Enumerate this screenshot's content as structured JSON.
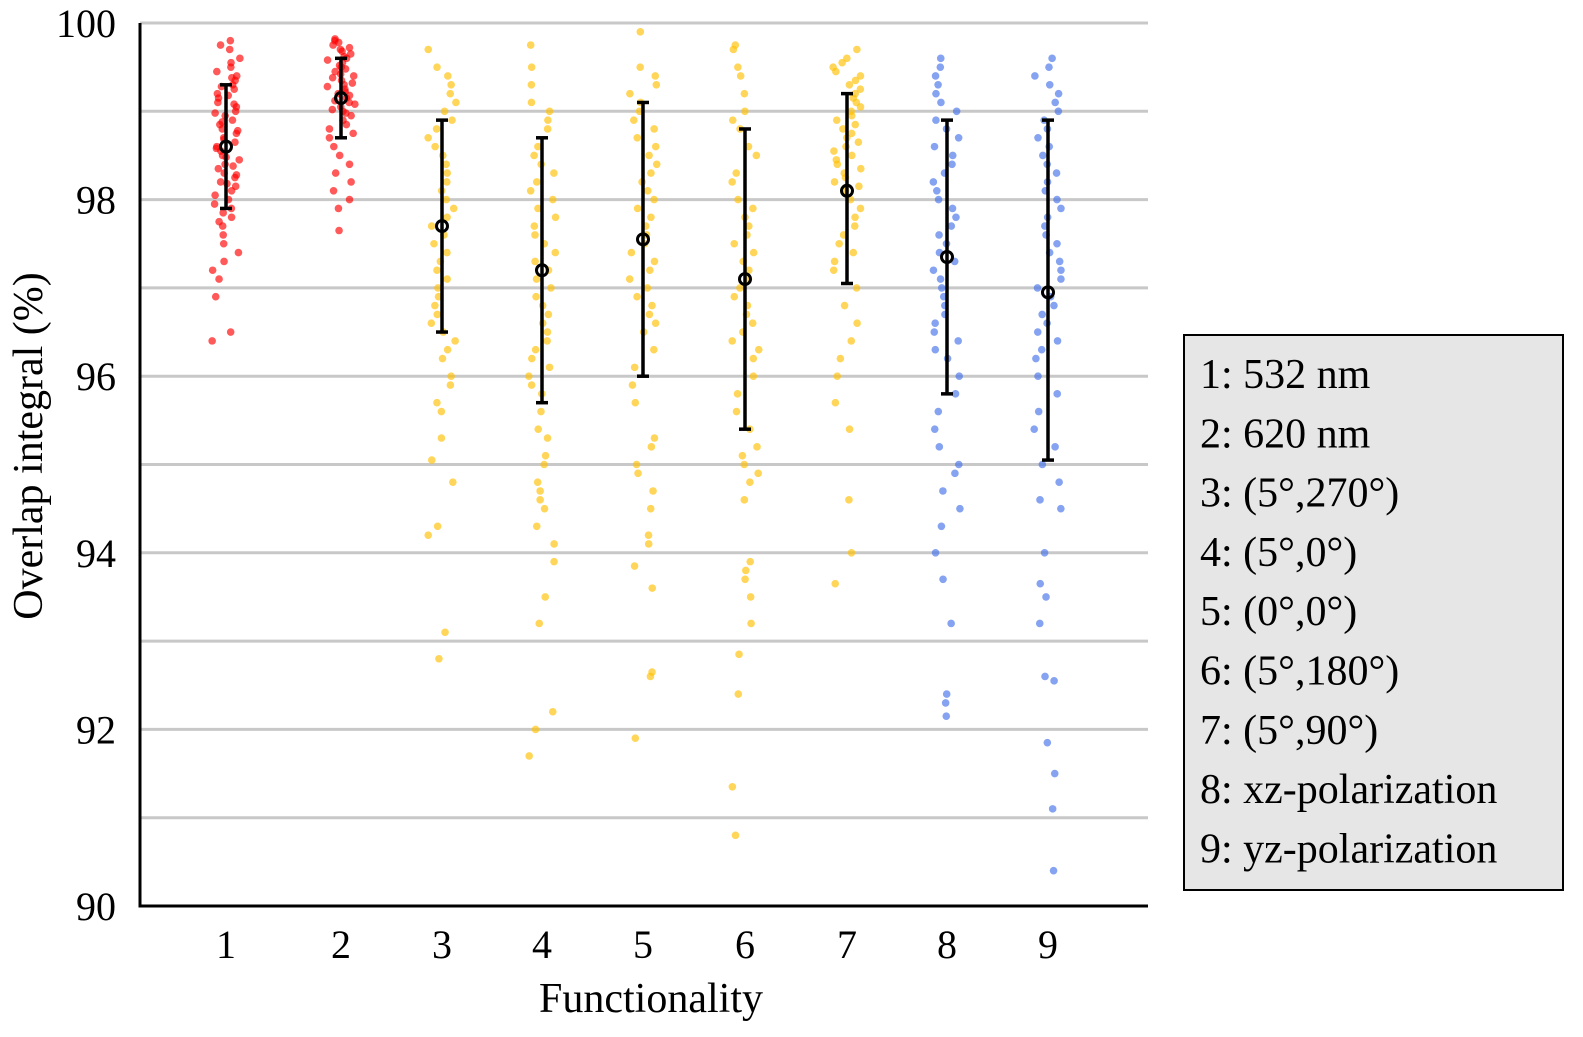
{
  "chart_data": {
    "type": "scatter",
    "subtype": "jittered strip plot with mean and standard-deviation error bars",
    "title": "",
    "xlabel": "Functionality",
    "ylabel": "Overlap integral (%)",
    "ylim": [
      90,
      100
    ],
    "yticks": [
      90,
      92,
      94,
      96,
      98,
      100
    ],
    "gridlines": [
      91,
      92,
      93,
      94,
      95,
      96,
      97,
      98,
      99,
      100
    ],
    "grid": true,
    "categories": [
      "1",
      "2",
      "3",
      "4",
      "5",
      "6",
      "7",
      "8",
      "9"
    ],
    "colors": {
      "group1": "#ff0000",
      "group2": "#ffc000",
      "group3": "#4472e8",
      "error_bar": "#000000",
      "grid": "#c8c8c8"
    },
    "series": [
      {
        "name": "1: 532 nm",
        "category": "1",
        "color": "#ff0000",
        "mean": 98.6,
        "err_low": 97.9,
        "err_high": 99.3,
        "points": [
          99.8,
          99.75,
          99.7,
          99.6,
          99.55,
          99.5,
          99.45,
          99.4,
          99.38,
          99.35,
          99.3,
          99.28,
          99.25,
          99.2,
          99.18,
          99.15,
          99.1,
          99.08,
          99.05,
          99.0,
          98.98,
          98.95,
          98.9,
          98.88,
          98.85,
          98.8,
          98.78,
          98.75,
          98.7,
          98.68,
          98.65,
          98.6,
          98.58,
          98.55,
          98.5,
          98.48,
          98.45,
          98.4,
          98.38,
          98.35,
          98.3,
          98.28,
          98.25,
          98.2,
          98.18,
          98.15,
          98.1,
          98.05,
          98.0,
          97.95,
          97.9,
          97.85,
          97.8,
          97.75,
          97.7,
          97.6,
          97.5,
          97.4,
          97.3,
          97.2,
          97.1,
          96.9,
          96.5,
          96.4
        ]
      },
      {
        "name": "2: 620 nm",
        "category": "2",
        "color": "#ff0000",
        "mean": 99.15,
        "err_low": 98.7,
        "err_high": 99.6,
        "points": [
          99.82,
          99.8,
          99.78,
          99.75,
          99.72,
          99.7,
          99.68,
          99.65,
          99.62,
          99.6,
          99.58,
          99.55,
          99.52,
          99.5,
          99.48,
          99.45,
          99.42,
          99.4,
          99.38,
          99.35,
          99.32,
          99.3,
          99.28,
          99.25,
          99.22,
          99.2,
          99.18,
          99.15,
          99.12,
          99.1,
          99.08,
          99.05,
          99.02,
          99.0,
          98.98,
          98.95,
          98.9,
          98.85,
          98.8,
          98.75,
          98.7,
          98.6,
          98.5,
          98.4,
          98.3,
          98.2,
          98.1,
          98.0,
          97.9,
          97.65
        ]
      },
      {
        "name": "3: (5°,270°)",
        "category": "3",
        "color": "#ffc000",
        "mean": 97.7,
        "err_low": 96.5,
        "err_high": 98.9,
        "points": [
          99.7,
          99.5,
          99.4,
          99.3,
          99.2,
          99.1,
          99.0,
          98.9,
          98.8,
          98.7,
          98.6,
          98.5,
          98.4,
          98.3,
          98.2,
          98.1,
          98.0,
          97.9,
          97.8,
          97.7,
          97.6,
          97.5,
          97.4,
          97.3,
          97.2,
          97.1,
          97.0,
          96.9,
          96.8,
          96.7,
          96.6,
          96.5,
          96.4,
          96.3,
          96.2,
          96.0,
          95.9,
          95.7,
          95.6,
          95.3,
          95.05,
          94.8,
          94.3,
          94.2,
          93.1,
          92.8
        ]
      },
      {
        "name": "4: (5°,0°)",
        "category": "4",
        "color": "#ffc000",
        "mean": 97.2,
        "err_low": 95.7,
        "err_high": 98.7,
        "points": [
          99.75,
          99.5,
          99.3,
          99.1,
          99.0,
          98.9,
          98.8,
          98.6,
          98.5,
          98.4,
          98.3,
          98.2,
          98.1,
          98.0,
          97.9,
          97.8,
          97.7,
          97.6,
          97.5,
          97.4,
          97.3,
          97.2,
          97.1,
          97.0,
          96.9,
          96.8,
          96.7,
          96.6,
          96.5,
          96.4,
          96.3,
          96.2,
          96.1,
          96.0,
          95.9,
          95.8,
          95.6,
          95.4,
          95.3,
          95.1,
          95.0,
          94.8,
          94.7,
          94.6,
          94.5,
          94.3,
          94.1,
          93.9,
          93.5,
          93.2,
          92.2,
          92.0,
          91.7
        ]
      },
      {
        "name": "5: (0°,0°)",
        "category": "5",
        "color": "#ffc000",
        "mean": 97.55,
        "err_low": 96.0,
        "err_high": 99.1,
        "points": [
          99.9,
          99.5,
          99.4,
          99.3,
          99.2,
          99.1,
          99.0,
          98.9,
          98.8,
          98.7,
          98.6,
          98.5,
          98.4,
          98.3,
          98.2,
          98.1,
          98.0,
          97.9,
          97.8,
          97.7,
          97.6,
          97.5,
          97.4,
          97.3,
          97.2,
          97.1,
          97.0,
          96.9,
          96.8,
          96.7,
          96.6,
          96.5,
          96.3,
          96.1,
          95.9,
          95.7,
          95.3,
          95.2,
          95.0,
          94.9,
          94.7,
          94.5,
          94.2,
          94.1,
          93.85,
          93.6,
          92.65,
          92.6,
          91.9
        ]
      },
      {
        "name": "6: (5°,180°)",
        "category": "6",
        "color": "#ffc000",
        "mean": 97.1,
        "err_low": 95.4,
        "err_high": 98.8,
        "points": [
          99.75,
          99.7,
          99.5,
          99.4,
          99.2,
          99.0,
          98.9,
          98.8,
          98.6,
          98.5,
          98.3,
          98.2,
          98.0,
          97.9,
          97.8,
          97.7,
          97.6,
          97.5,
          97.4,
          97.3,
          97.2,
          97.1,
          97.0,
          96.9,
          96.8,
          96.7,
          96.6,
          96.5,
          96.4,
          96.3,
          96.2,
          96.0,
          95.8,
          95.6,
          95.4,
          95.2,
          95.1,
          95.0,
          94.9,
          94.8,
          94.6,
          93.9,
          93.8,
          93.7,
          93.5,
          93.2,
          92.85,
          92.4,
          91.35,
          90.8
        ]
      },
      {
        "name": "7: (5°,90°)",
        "category": "7",
        "color": "#ffc000",
        "mean": 98.1,
        "err_low": 97.05,
        "err_high": 99.2,
        "points": [
          99.7,
          99.6,
          99.55,
          99.5,
          99.45,
          99.4,
          99.35,
          99.3,
          99.25,
          99.2,
          99.15,
          99.1,
          99.05,
          99.0,
          98.95,
          98.9,
          98.85,
          98.8,
          98.75,
          98.7,
          98.65,
          98.6,
          98.55,
          98.5,
          98.45,
          98.4,
          98.35,
          98.3,
          98.25,
          98.2,
          98.15,
          98.1,
          98.0,
          97.9,
          97.8,
          97.7,
          97.6,
          97.5,
          97.4,
          97.3,
          97.2,
          97.0,
          96.8,
          96.6,
          96.4,
          96.2,
          96.0,
          95.7,
          95.4,
          94.6,
          94.0,
          93.65
        ]
      },
      {
        "name": "8: xz-polarization",
        "category": "8",
        "color": "#4472e8",
        "mean": 97.35,
        "err_low": 95.8,
        "err_high": 98.9,
        "points": [
          99.6,
          99.5,
          99.4,
          99.3,
          99.2,
          99.1,
          99.0,
          98.9,
          98.8,
          98.7,
          98.6,
          98.5,
          98.4,
          98.3,
          98.2,
          98.1,
          98.0,
          97.9,
          97.8,
          97.7,
          97.6,
          97.5,
          97.4,
          97.3,
          97.2,
          97.1,
          97.0,
          96.9,
          96.8,
          96.7,
          96.6,
          96.5,
          96.4,
          96.3,
          96.2,
          96.0,
          95.8,
          95.6,
          95.4,
          95.2,
          95.0,
          94.9,
          94.7,
          94.5,
          94.3,
          94.0,
          93.7,
          93.2,
          92.4,
          92.3,
          92.15
        ]
      },
      {
        "name": "9: yz-polarization",
        "category": "9",
        "color": "#4472e8",
        "mean": 96.95,
        "err_low": 95.05,
        "err_high": 98.9,
        "points": [
          99.6,
          99.5,
          99.4,
          99.3,
          99.2,
          99.1,
          99.0,
          98.9,
          98.8,
          98.7,
          98.6,
          98.5,
          98.4,
          98.3,
          98.2,
          98.1,
          98.0,
          97.9,
          97.8,
          97.7,
          97.6,
          97.5,
          97.4,
          97.3,
          97.2,
          97.1,
          97.0,
          96.9,
          96.8,
          96.7,
          96.6,
          96.5,
          96.4,
          96.3,
          96.2,
          96.0,
          95.8,
          95.6,
          95.4,
          95.2,
          95.0,
          94.8,
          94.6,
          94.5,
          94.0,
          93.65,
          93.5,
          93.2,
          92.6,
          92.55,
          91.85,
          91.5,
          91.1,
          90.4
        ]
      }
    ]
  },
  "legend": {
    "position": "right",
    "items": [
      "1: 532 nm",
      "2: 620 nm",
      "3: (5°,270°)",
      "4: (5°,0°)",
      "5: (0°,0°)",
      "6: (5°,180°)",
      "7: (5°,90°)",
      "8: xz-polarization",
      "9: yz-polarization"
    ]
  }
}
